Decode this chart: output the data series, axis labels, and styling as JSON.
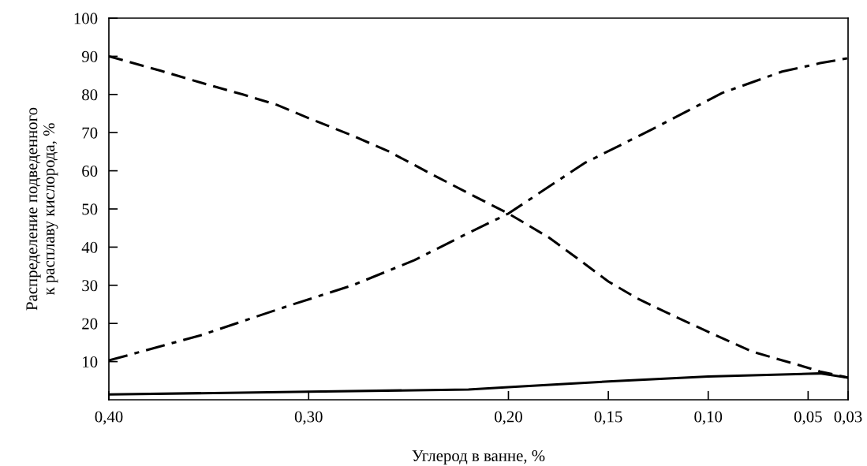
{
  "chart_data": {
    "type": "line",
    "xlabel": "Углерод в ванне, %",
    "ylabel": "Распределение подведенного\nк расплаву кислорода, %",
    "xlim": [
      0.4,
      0.03
    ],
    "xticks": [
      {
        "value": 0.4,
        "label": "0,40"
      },
      {
        "value": 0.3,
        "label": "0,30"
      },
      {
        "value": 0.2,
        "label": "0,20"
      },
      {
        "value": 0.15,
        "label": "0,15"
      },
      {
        "value": 0.1,
        "label": "0,10"
      },
      {
        "value": 0.05,
        "label": "0,05"
      },
      {
        "value": 0.03,
        "label": "0,03"
      }
    ],
    "ylim": [
      0,
      100
    ],
    "yticks": [
      10,
      20,
      30,
      40,
      50,
      60,
      70,
      80,
      90,
      100
    ],
    "grid": false,
    "legend": false,
    "series": [
      {
        "color": "#000000",
        "line_style": "dashed",
        "x": [
          0.4,
          0.374,
          0.354,
          0.333,
          0.316,
          0.3,
          0.278,
          0.26,
          0.242,
          0.22,
          0.2,
          0.18,
          0.169,
          0.15,
          0.136,
          0.121,
          0.1,
          0.078,
          0.056,
          0.044,
          0.03
        ],
        "values": [
          90,
          86.2,
          83.1,
          80,
          77.3,
          73.8,
          69.2,
          65.1,
          60.1,
          54.1,
          48.8,
          42.6,
          38.4,
          31.0,
          26.7,
          22.9,
          17.8,
          12.6,
          9.3,
          7.4,
          5.8
        ]
      },
      {
        "color": "#000000",
        "line_style": "dashdot",
        "x": [
          0.4,
          0.354,
          0.309,
          0.278,
          0.247,
          0.222,
          0.2,
          0.162,
          0.128,
          0.093,
          0.063,
          0.044,
          0.03
        ],
        "values": [
          10.3,
          16.9,
          24.8,
          30,
          36.6,
          43.2,
          48.8,
          62,
          70.9,
          80.4,
          86,
          88.2,
          89.5
        ]
      },
      {
        "color": "#000000",
        "line_style": "solid",
        "x": [
          0.4,
          0.3,
          0.22,
          0.2,
          0.174,
          0.15,
          0.1,
          0.05,
          0.044,
          0.03
        ],
        "values": [
          1.4,
          2.1,
          2.7,
          3.3,
          4.1,
          4.8,
          6.1,
          6.8,
          6.9,
          5.8
        ]
      }
    ]
  }
}
